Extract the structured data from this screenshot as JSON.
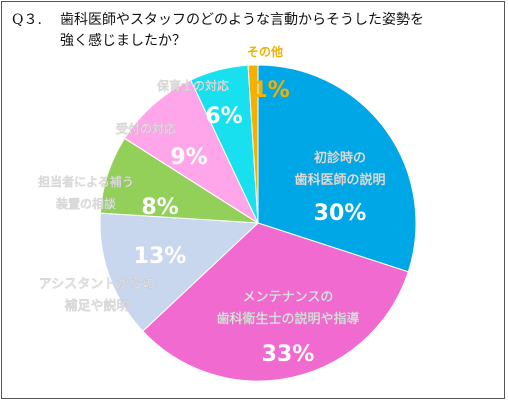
{
  "question": {
    "number": "Q３.",
    "line1": "歯科医師やスタッフのどのような言動からそうした姿勢を",
    "line2": "強く感じましたか？"
  },
  "chart_data": {
    "type": "pie",
    "title": "歯科医師やスタッフのどのような言動からそうした姿勢を強く感じましたか？",
    "unit": "%",
    "legend": "none",
    "slices": [
      {
        "label": [
          "初診時の",
          "歯科医師の説明"
        ],
        "value": 30,
        "value_label": "30%",
        "color": "#00a7e6",
        "label_color": "#ffffff"
      },
      {
        "label": [
          "メンテナンスの",
          "歯科衛生士の説明や指導"
        ],
        "value": 33,
        "value_label": "33%",
        "color": "#f06ad0",
        "label_color": "#ffffff"
      },
      {
        "label": [
          "アシスタントからの",
          "補足や説明"
        ],
        "value": 13,
        "value_label": "13%",
        "color": "#c8d7ee",
        "label_color": "#ffffff"
      },
      {
        "label": [
          "担当者による補う",
          "装置の相談"
        ],
        "value": 8,
        "value_label": "8%",
        "color": "#93d05a",
        "label_color": "#ffffff"
      },
      {
        "label": [
          "受付の対応"
        ],
        "value": 9,
        "value_label": "9%",
        "color": "#ffa6ea",
        "label_color": "#ffffff"
      },
      {
        "label": [
          "保育士の対応"
        ],
        "value": 6,
        "value_label": "6%",
        "color": "#19e0ee",
        "label_color": "#ffffff"
      },
      {
        "label": [
          "その他"
        ],
        "value": 1,
        "value_label": "1%",
        "color": "#f4b000",
        "label_color": "#f4b000"
      }
    ]
  }
}
